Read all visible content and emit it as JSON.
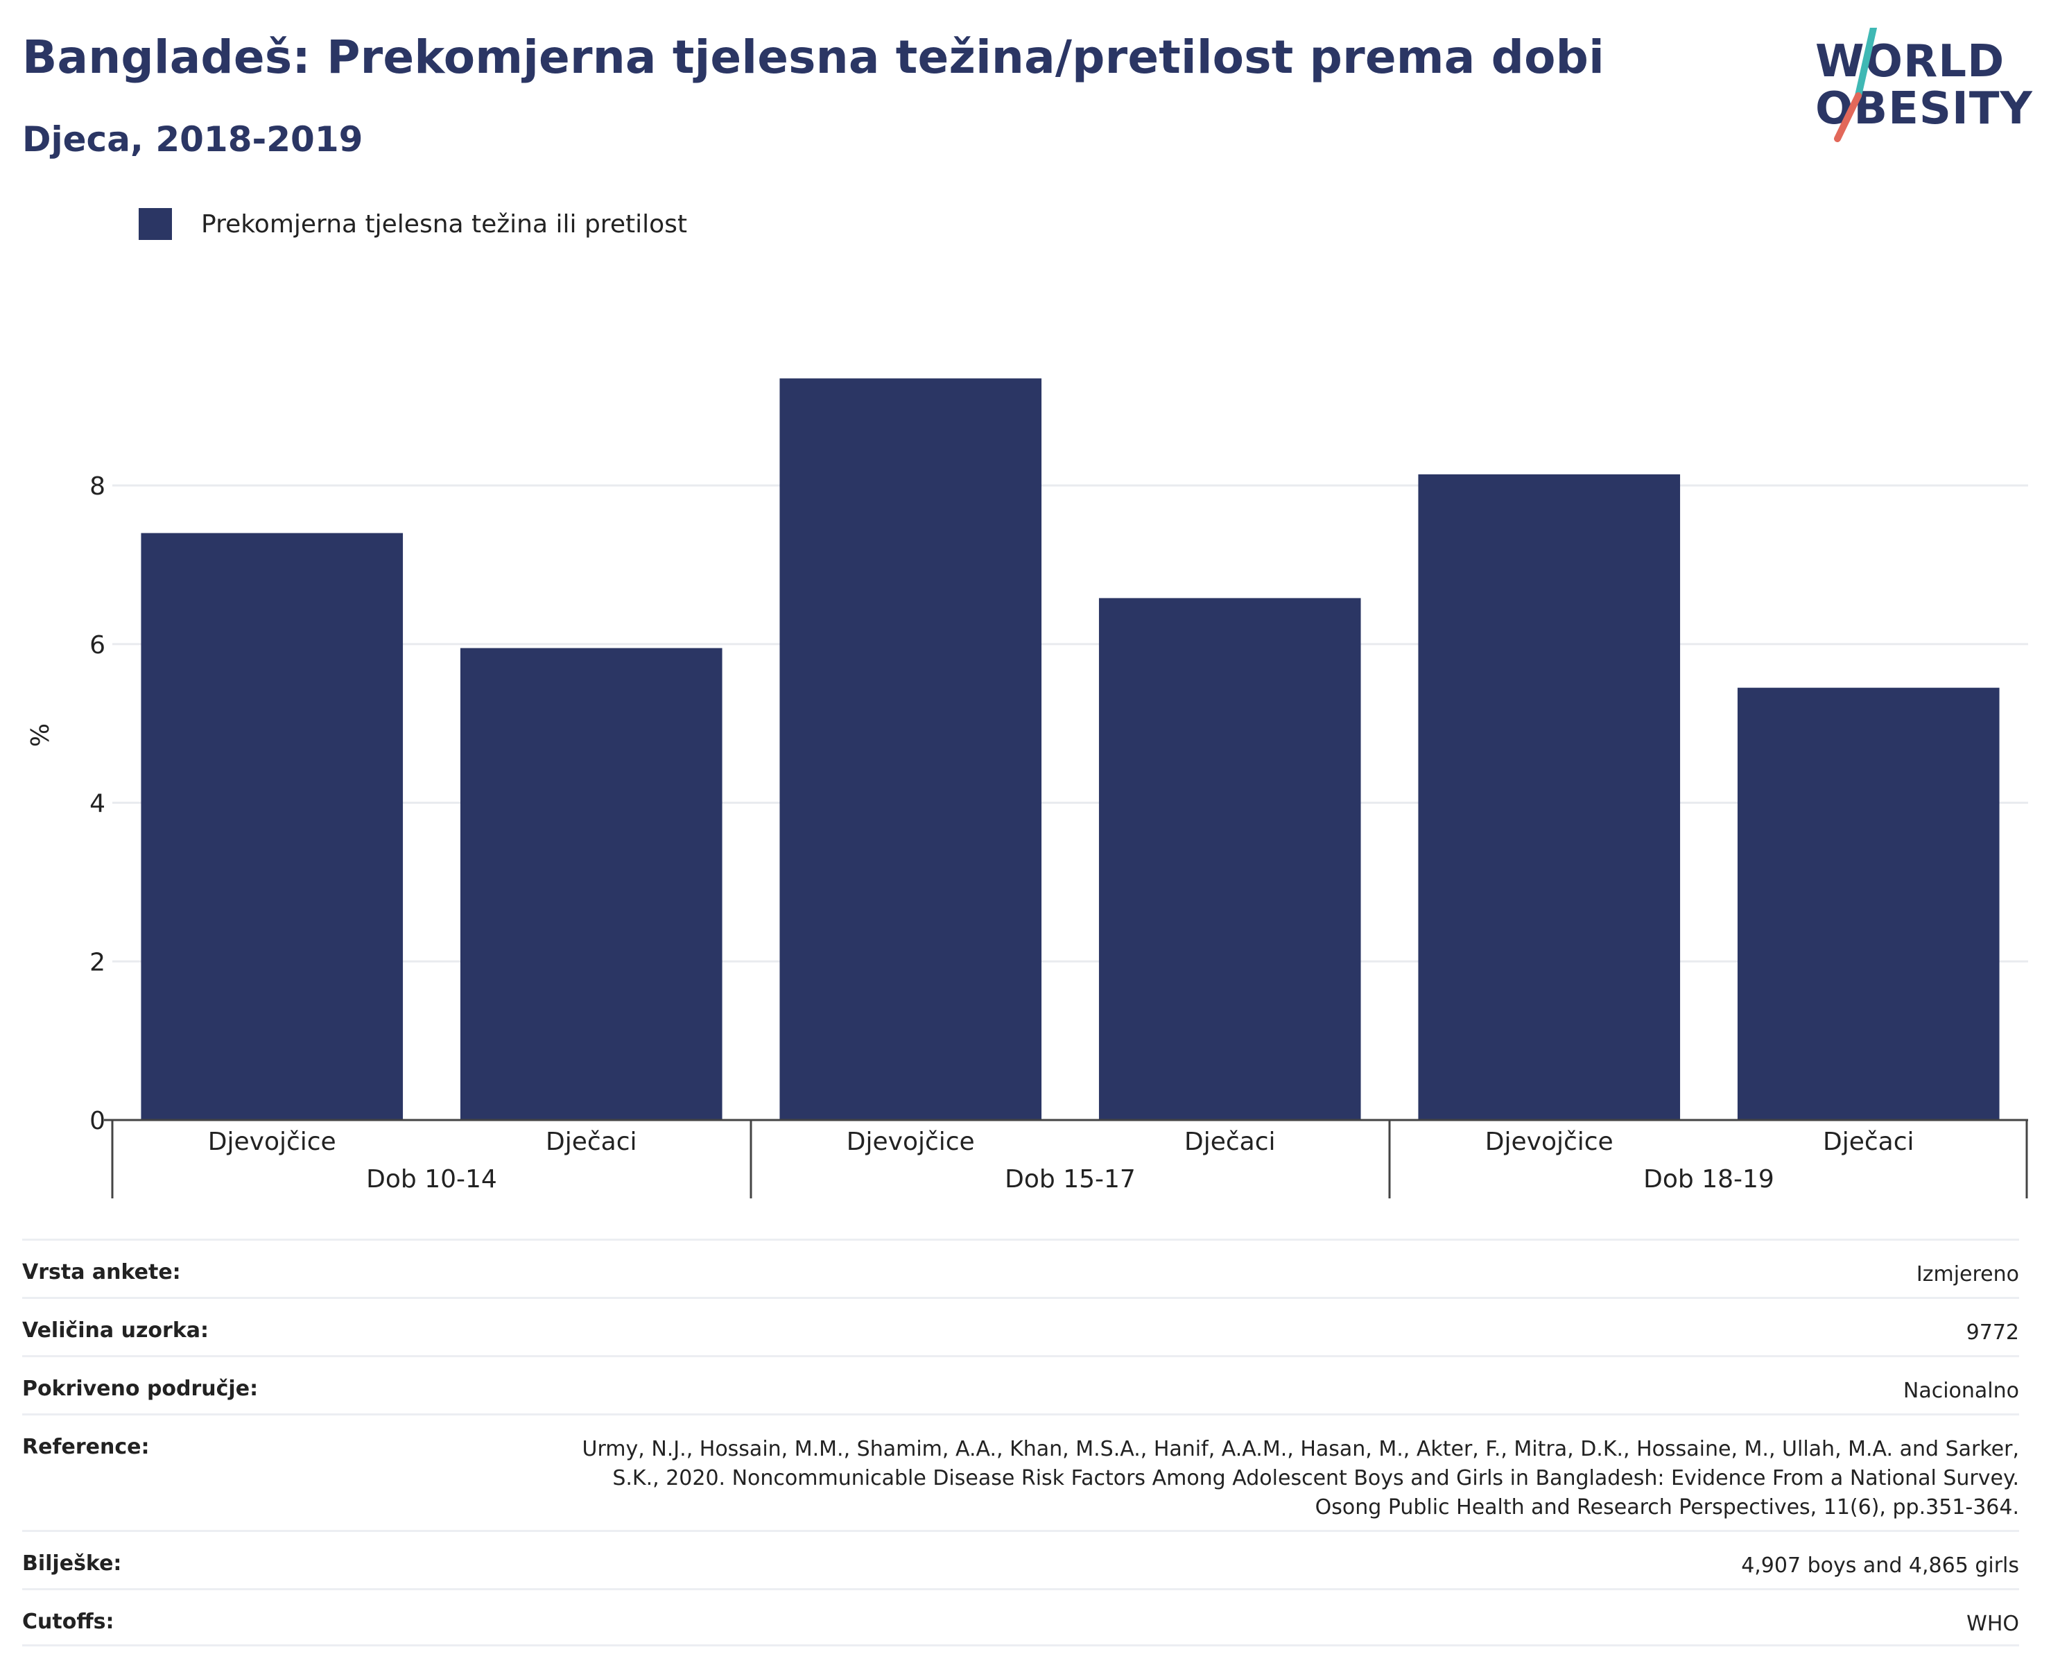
{
  "header": {
    "title": "Bangladeš: Prekomjerna tjelesna težina/pretilost prema dobi",
    "subtitle": "Djeca, 2018-2019"
  },
  "logo": {
    "line1": "WORLD",
    "line2": "OBESITY",
    "accent_colors": [
      "#3fb8b4",
      "#e2685a"
    ]
  },
  "legend": {
    "items": [
      {
        "label": "Prekomjerna tjelesna težina ili pretilost",
        "color": "#2b3664"
      }
    ]
  },
  "chart_data": {
    "type": "bar",
    "title": "",
    "xlabel": "",
    "ylabel": "%",
    "ylim": [
      0,
      10
    ],
    "yticks": [
      0,
      2,
      4,
      6,
      8
    ],
    "grid": true,
    "legend_position": "top-left",
    "groups": [
      {
        "label": "Dob 10-14",
        "categories": [
          "Djevojčice",
          "Dječaci"
        ]
      },
      {
        "label": "Dob 15-17",
        "categories": [
          "Djevojčice",
          "Dječaci"
        ]
      },
      {
        "label": "Dob 18-19",
        "categories": [
          "Djevojčice",
          "Dječaci"
        ]
      }
    ],
    "series": [
      {
        "name": "Prekomjerna tjelesna težina ili pretilost",
        "color": "#2b3664",
        "values": [
          7.4,
          5.95,
          9.35,
          6.58,
          8.14,
          5.45
        ]
      }
    ]
  },
  "meta": [
    {
      "key": "Vrsta ankete:",
      "value": "Izmjereno"
    },
    {
      "key": "Veličina uzorka:",
      "value": "9772"
    },
    {
      "key": "Pokriveno područje:",
      "value": "Nacionalno"
    },
    {
      "key": "Reference:",
      "value": "Urmy, N.J., Hossain, M.M., Shamim, A.A., Khan, M.S.A., Hanif, A.A.M., Hasan, M., Akter, F., Mitra, D.K., Hossaine, M., Ullah, M.A. and Sarker, S.K., 2020. Noncommunicable Disease Risk Factors Among Adolescent Boys and Girls in Bangladesh: Evidence From a National Survey. Osong Public Health and Research Perspectives, 11(6), pp.351-364."
    },
    {
      "key": "Bilješke:",
      "value": "4,907 boys and 4,865 girls"
    },
    {
      "key": "Cutoffs:",
      "value": "WHO"
    }
  ]
}
